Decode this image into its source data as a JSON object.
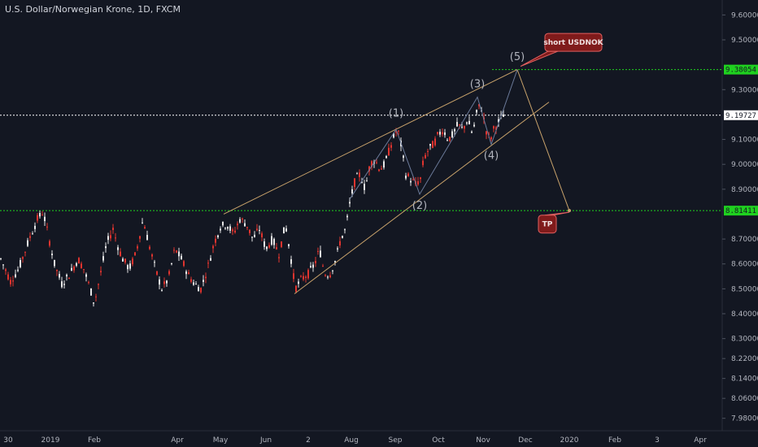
{
  "header": {
    "title": "U.S. Dollar/Norwegian Krone, 1D, FXCM"
  },
  "colors": {
    "background": "#131722",
    "up": "#e6e6e6",
    "down": "#e0342f",
    "trendline": "#c8a26b",
    "wave_line": "#6b7a99",
    "green_level": "#1fd11f",
    "white_level": "#ffffff",
    "callout_bg": "#801b1b",
    "callout_border": "#e06060"
  },
  "chart_data": {
    "type": "candlestick",
    "title": "U.S. Dollar/Norwegian Krone, 1D, FXCM",
    "ylim": [
      7.93,
      9.66
    ],
    "y_ticks": [
      "9.60000",
      "9.50000",
      "9.30000",
      "9.10000",
      "9.00000",
      "8.90000",
      "8.70000",
      "8.60000",
      "8.50000",
      "8.40000",
      "8.30000",
      "8.22000",
      "8.14000",
      "8.06000",
      "7.98000"
    ],
    "x_ticks": [
      "30",
      "2019",
      "Feb",
      "Apr",
      "May",
      "Jun",
      "2",
      "Aug",
      "Sep",
      "Oct",
      "Nov",
      "Dec",
      "2020",
      "Feb",
      "3",
      "Apr"
    ],
    "price_tags": [
      {
        "value": 9.38054,
        "label": "9.38054",
        "style": "green"
      },
      {
        "value": 9.19727,
        "label": "9.19727",
        "style": "white"
      },
      {
        "value": 8.81411,
        "label": "8.81411",
        "style": "green"
      }
    ],
    "price_path": [
      [
        0,
        8.62
      ],
      [
        12,
        8.53
      ],
      [
        22,
        8.58
      ],
      [
        35,
        8.7
      ],
      [
        45,
        8.78
      ],
      [
        52,
        8.81
      ],
      [
        58,
        8.72
      ],
      [
        66,
        8.6
      ],
      [
        75,
        8.52
      ],
      [
        85,
        8.56
      ],
      [
        95,
        8.62
      ],
      [
        102,
        8.58
      ],
      [
        110,
        8.5
      ],
      [
        115,
        8.44
      ],
      [
        122,
        8.55
      ],
      [
        130,
        8.68
      ],
      [
        138,
        8.74
      ],
      [
        145,
        8.66
      ],
      [
        150,
        8.62
      ],
      [
        158,
        8.58
      ],
      [
        166,
        8.64
      ],
      [
        175,
        8.78
      ],
      [
        182,
        8.68
      ],
      [
        190,
        8.58
      ],
      [
        198,
        8.5
      ],
      [
        206,
        8.54
      ],
      [
        214,
        8.66
      ],
      [
        222,
        8.62
      ],
      [
        230,
        8.56
      ],
      [
        238,
        8.52
      ],
      [
        246,
        8.5
      ],
      [
        254,
        8.58
      ],
      [
        262,
        8.68
      ],
      [
        270,
        8.75
      ],
      [
        278,
        8.76
      ],
      [
        286,
        8.72
      ],
      [
        294,
        8.78
      ],
      [
        302,
        8.76
      ],
      [
        310,
        8.7
      ],
      [
        318,
        8.74
      ],
      [
        326,
        8.66
      ],
      [
        334,
        8.7
      ],
      [
        342,
        8.64
      ],
      [
        350,
        8.76
      ],
      [
        356,
        8.64
      ],
      [
        362,
        8.5
      ],
      [
        370,
        8.54
      ],
      [
        378,
        8.56
      ],
      [
        386,
        8.6
      ],
      [
        392,
        8.66
      ],
      [
        398,
        8.56
      ],
      [
        405,
        8.56
      ],
      [
        412,
        8.62
      ],
      [
        418,
        8.7
      ],
      [
        424,
        8.74
      ],
      [
        430,
        8.86
      ],
      [
        436,
        8.94
      ],
      [
        442,
        8.96
      ],
      [
        448,
        8.9
      ],
      [
        454,
        9.0
      ],
      [
        460,
        9.02
      ],
      [
        466,
        8.98
      ],
      [
        472,
        9.0
      ],
      [
        478,
        9.06
      ],
      [
        484,
        9.12
      ],
      [
        488,
        9.14
      ],
      [
        492,
        9.08
      ],
      [
        498,
        8.96
      ],
      [
        504,
        8.94
      ],
      [
        510,
        8.92
      ],
      [
        516,
        8.94
      ],
      [
        520,
        9.02
      ],
      [
        526,
        9.06
      ],
      [
        532,
        9.08
      ],
      [
        538,
        9.12
      ],
      [
        544,
        9.14
      ],
      [
        550,
        9.1
      ],
      [
        556,
        9.12
      ],
      [
        562,
        9.16
      ],
      [
        568,
        9.14
      ],
      [
        574,
        9.18
      ],
      [
        580,
        9.12
      ],
      [
        586,
        9.22
      ],
      [
        590,
        9.24
      ],
      [
        594,
        9.18
      ],
      [
        598,
        9.12
      ],
      [
        602,
        9.1
      ],
      [
        606,
        9.14
      ],
      [
        610,
        9.16
      ],
      [
        614,
        9.18
      ],
      [
        618,
        9.2
      ]
    ],
    "levels": {
      "top_level": 9.38054,
      "current_price": 9.19727,
      "support_level": 8.81411
    },
    "elliott_wave": [
      {
        "label": "(1)",
        "t": 487,
        "price": 9.14
      },
      {
        "label": "(2)",
        "t": 516,
        "price": 8.88
      },
      {
        "label": "(3)",
        "t": 587,
        "price": 9.27
      },
      {
        "label": "(4)",
        "t": 604,
        "price": 9.08
      },
      {
        "label": "(5)",
        "t": 636,
        "price": 9.38
      }
    ],
    "projection": {
      "from": [
        636,
        9.38054
      ],
      "to": [
        700,
        8.81411
      ]
    },
    "upper_channel": {
      "from": [
        275,
        8.8
      ],
      "to": [
        636,
        9.38054
      ]
    },
    "lower_channel": {
      "from": [
        362,
        8.48
      ],
      "to": [
        675,
        9.25
      ]
    },
    "annotations": [
      {
        "text": "short USDNOK",
        "t": 705,
        "price": 9.49
      },
      {
        "text": "TP",
        "t": 673,
        "price": 8.76
      }
    ]
  }
}
